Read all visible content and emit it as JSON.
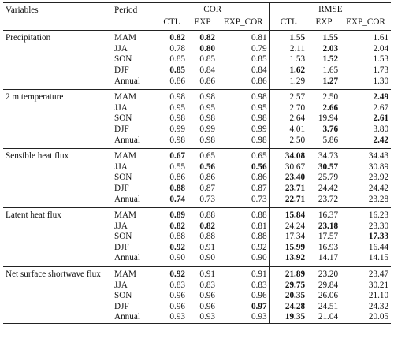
{
  "header": {
    "variables": "Variables",
    "period": "Period",
    "cor_group": "COR",
    "rmse_group": "RMSE",
    "cols": [
      "CTL",
      "EXP",
      "EXP_COR",
      "CTL",
      "EXP",
      "EXP_COR"
    ]
  },
  "groups": [
    {
      "name": "Precipitation",
      "rows": [
        {
          "period": "MAM",
          "v": [
            "0.82",
            "0.82",
            "0.81",
            "1.55",
            "1.55",
            "1.61"
          ],
          "bold": [
            0,
            1,
            3,
            4
          ]
        },
        {
          "period": "JJA",
          "v": [
            "0.78",
            "0.80",
            "0.79",
            "2.11",
            "2.03",
            "2.04"
          ],
          "bold": [
            1,
            4
          ]
        },
        {
          "period": "SON",
          "v": [
            "0.85",
            "0.85",
            "0.85",
            "1.53",
            "1.52",
            "1.53"
          ],
          "bold": [
            4
          ]
        },
        {
          "period": "DJF",
          "v": [
            "0.85",
            "0.84",
            "0.84",
            "1.62",
            "1.65",
            "1.73"
          ],
          "bold": [
            0,
            3
          ]
        },
        {
          "period": "Annual",
          "v": [
            "0.86",
            "0.86",
            "0.86",
            "1.29",
            "1.27",
            "1.30"
          ],
          "bold": [
            4
          ]
        }
      ]
    },
    {
      "name": "2 m temperature",
      "rows": [
        {
          "period": "MAM",
          "v": [
            "0.98",
            "0.98",
            "0.98",
            "2.57",
            "2.50",
            "2.49"
          ],
          "bold": [
            5
          ]
        },
        {
          "period": "JJA",
          "v": [
            "0.95",
            "0.95",
            "0.95",
            "2.70",
            "2.66",
            "2.67"
          ],
          "bold": [
            4
          ]
        },
        {
          "period": "SON",
          "v": [
            "0.98",
            "0.98",
            "0.98",
            "2.64",
            "19.94",
            "2.61"
          ],
          "bold": [
            5
          ]
        },
        {
          "period": "DJF",
          "v": [
            "0.99",
            "0.99",
            "0.99",
            "4.01",
            "3.76",
            "3.80"
          ],
          "bold": [
            4
          ]
        },
        {
          "period": "Annual",
          "v": [
            "0.98",
            "0.98",
            "0.98",
            "2.50",
            "5.86",
            "2.42"
          ],
          "bold": [
            5
          ]
        }
      ]
    },
    {
      "name": "Sensible heat flux",
      "rows": [
        {
          "period": "MAM",
          "v": [
            "0.67",
            "0.65",
            "0.65",
            "34.08",
            "34.73",
            "34.43"
          ],
          "bold": [
            0,
            3
          ]
        },
        {
          "period": "JJA",
          "v": [
            "0.55",
            "0.56",
            "0.56",
            "30.67",
            "30.57",
            "30.89"
          ],
          "bold": [
            1,
            2,
            4
          ]
        },
        {
          "period": "SON",
          "v": [
            "0.86",
            "0.86",
            "0.86",
            "23.40",
            "25.79",
            "23.92"
          ],
          "bold": [
            3
          ]
        },
        {
          "period": "DJF",
          "v": [
            "0.88",
            "0.87",
            "0.87",
            "23.71",
            "24.42",
            "24.42"
          ],
          "bold": [
            0,
            3
          ]
        },
        {
          "period": "Annual",
          "v": [
            "0.74",
            "0.73",
            "0.73",
            "22.71",
            "23.72",
            "23.28"
          ],
          "bold": [
            0,
            3
          ]
        }
      ]
    },
    {
      "name": "Latent heat flux",
      "rows": [
        {
          "period": "MAM",
          "v": [
            "0.89",
            "0.88",
            "0.88",
            "15.84",
            "16.37",
            "16.23"
          ],
          "bold": [
            0,
            3
          ]
        },
        {
          "period": "JJA",
          "v": [
            "0.82",
            "0.82",
            "0.81",
            "24.24",
            "23.18",
            "23.30"
          ],
          "bold": [
            0,
            1,
            4
          ]
        },
        {
          "period": "SON",
          "v": [
            "0.88",
            "0.88",
            "0.88",
            "17.34",
            "17.57",
            "17.33"
          ],
          "bold": [
            5
          ]
        },
        {
          "period": "DJF",
          "v": [
            "0.92",
            "0.91",
            "0.92",
            "15.99",
            "16.93",
            "16.44"
          ],
          "bold": [
            0,
            3
          ]
        },
        {
          "period": "Annual",
          "v": [
            "0.90",
            "0.90",
            "0.90",
            "13.92",
            "14.17",
            "14.15"
          ],
          "bold": [
            3
          ]
        }
      ]
    },
    {
      "name": "Net surface shortwave flux",
      "rows": [
        {
          "period": "MAM",
          "v": [
            "0.92",
            "0.91",
            "0.91",
            "21.89",
            "23.20",
            "23.47"
          ],
          "bold": [
            0,
            3
          ]
        },
        {
          "period": "JJA",
          "v": [
            "0.83",
            "0.83",
            "0.83",
            "29.75",
            "29.84",
            "30.21"
          ],
          "bold": [
            3
          ]
        },
        {
          "period": "SON",
          "v": [
            "0.96",
            "0.96",
            "0.96",
            "20.35",
            "26.06",
            "21.10"
          ],
          "bold": [
            3
          ]
        },
        {
          "period": "DJF",
          "v": [
            "0.96",
            "0.96",
            "0.97",
            "24.28",
            "24.51",
            "24.32"
          ],
          "bold": [
            2,
            3
          ]
        },
        {
          "period": "Annual",
          "v": [
            "0.93",
            "0.93",
            "0.93",
            "19.35",
            "21.04",
            "20.05"
          ],
          "bold": [
            3
          ]
        }
      ]
    }
  ]
}
